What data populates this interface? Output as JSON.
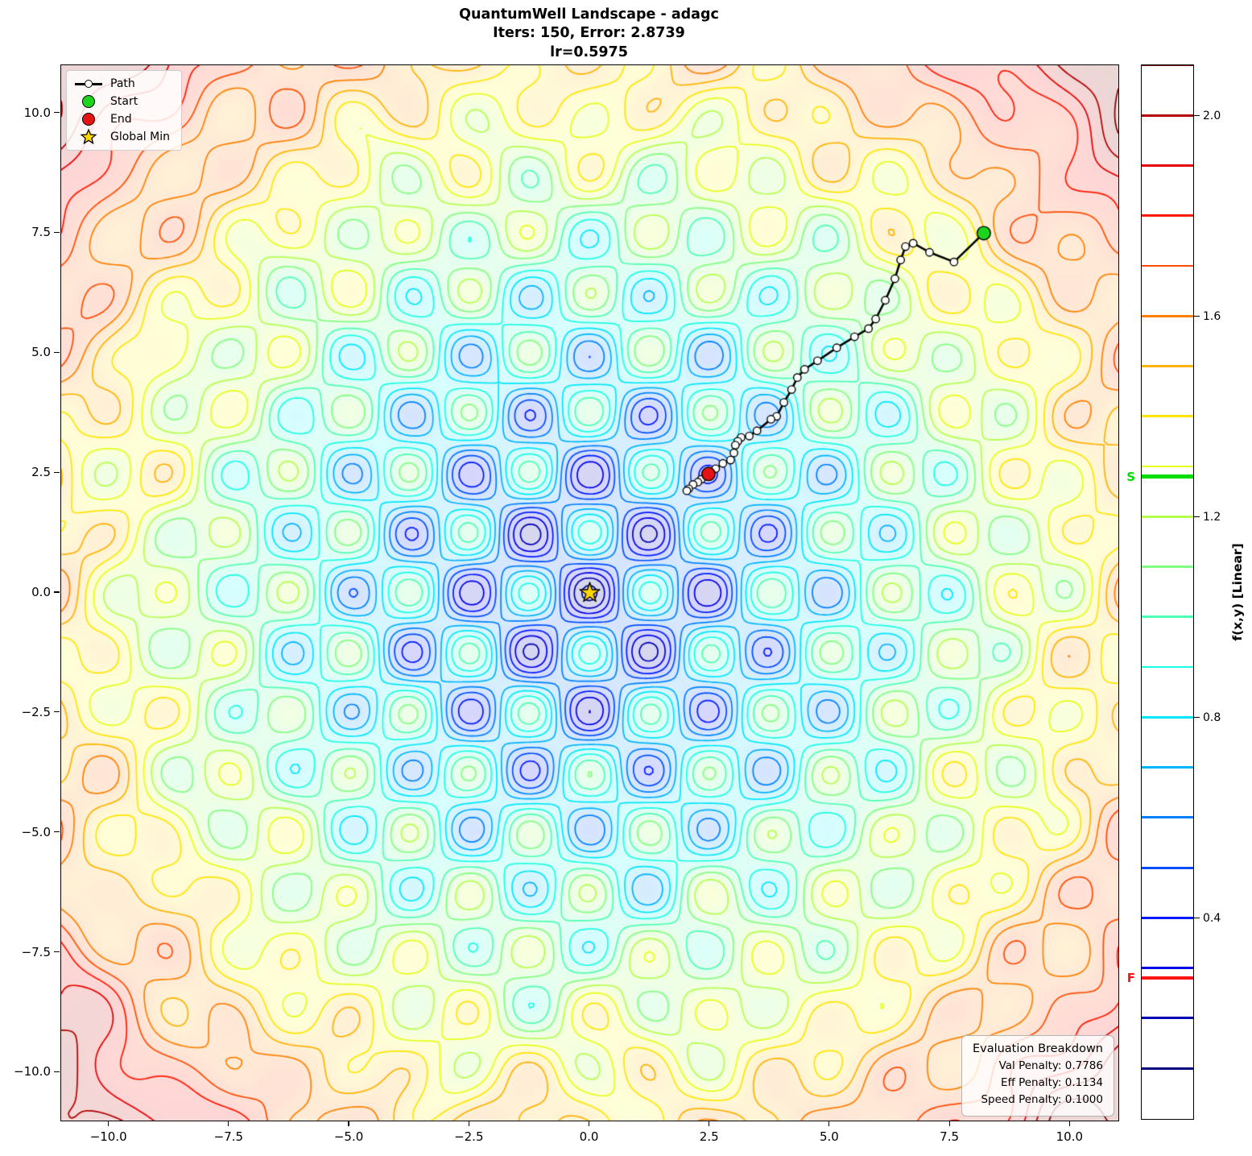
{
  "title": {
    "line1": "QuantumWell Landscape - adagc",
    "line2": "Iters: 150, Error: 2.8739",
    "line3": "lr=0.5975"
  },
  "legend": {
    "items": [
      {
        "label": "Path",
        "marker": "path-line-icon"
      },
      {
        "label": "Start",
        "marker": "start-circle-icon"
      },
      {
        "label": "End",
        "marker": "end-circle-icon"
      },
      {
        "label": "Global Min",
        "marker": "star-icon"
      }
    ]
  },
  "axes": {
    "x_range": [
      -11,
      11
    ],
    "y_range": [
      -11,
      11
    ],
    "x_ticks": [
      -10,
      -7.5,
      -5,
      -2.5,
      0,
      2.5,
      5,
      7.5,
      10
    ],
    "x_tick_labels": [
      "−10.0",
      "−7.5",
      "−5.0",
      "−2.5",
      "0.0",
      "2.5",
      "5.0",
      "7.5",
      "10.0"
    ],
    "y_ticks": [
      10,
      7.5,
      5,
      2.5,
      0,
      -2.5,
      -5,
      -7.5,
      -10
    ],
    "y_tick_labels": [
      "10.0",
      "7.5",
      "5.0",
      "2.5",
      "0.0",
      "−2.5",
      "−5.0",
      "−7.5",
      "−10.0"
    ]
  },
  "colorbar": {
    "label": "f(x,y) [Linear]",
    "range": [
      0,
      2.1
    ],
    "tick_values": [
      2.0,
      1.6,
      1.2,
      0.8,
      0.4
    ],
    "tick_labels": [
      "2.0",
      "1.6",
      "1.2",
      "0.8",
      "0.4"
    ],
    "s_label": "S",
    "s_value": 1.28,
    "f_label": "F",
    "f_value": 0.28
  },
  "evaluation_box": {
    "title": "Evaluation Breakdown",
    "lines": [
      "Val Penalty: 0.7786",
      "Eff Penalty: 0.1134",
      "Speed Penalty: 0.1000"
    ]
  },
  "colors": {
    "start": "#1bd41b",
    "end": "#e51313",
    "star": "#ffd700",
    "path": "#000000",
    "s_marker": "#00dd00",
    "f_marker": "#ff1212"
  },
  "chart_data": {
    "type": "contour",
    "title": "QuantumWell Landscape - adagc",
    "colormap": "jet",
    "levels": {
      "min": 0.1,
      "max": 2.1,
      "step": 0.1
    },
    "color_norm": [
      0.1,
      2.1
    ],
    "fill_alpha": 0.16,
    "surface": {
      "period": 2.5,
      "offset": 0.05,
      "radial_scale": 2.05,
      "radial_power": 1.35,
      "radial_rmax": 15.6,
      "well_amp": 0.43,
      "well_decay": 10,
      "noise_env": {
        "base": 0.15,
        "grow": 0.85,
        "r": 10
      },
      "noise_terms": [
        [
          0.05,
          1.7,
          0.6,
          1.4,
          -0.4,
          0
        ],
        [
          0.045,
          1.1,
          1.7,
          -1.3,
          0,
          1
        ],
        [
          0.035,
          2.2,
          -0.8,
          0.8,
          0,
          2
        ],
        [
          0.022,
          3.1,
          -0.9,
          2.7,
          0.4,
          0
        ]
      ]
    },
    "optimizer_path": {
      "points": [
        [
          8.2,
          7.5
        ],
        [
          7.58,
          6.9
        ],
        [
          7.07,
          7.1
        ],
        [
          6.73,
          7.29
        ],
        [
          6.57,
          7.22
        ],
        [
          6.47,
          6.94
        ],
        [
          6.35,
          6.55
        ],
        [
          6.15,
          6.1
        ],
        [
          5.95,
          5.71
        ],
        [
          5.8,
          5.51
        ],
        [
          5.51,
          5.34
        ],
        [
          5.14,
          5.11
        ],
        [
          4.74,
          4.84
        ],
        [
          4.47,
          4.66
        ],
        [
          4.32,
          4.49
        ],
        [
          4.2,
          4.24
        ],
        [
          4.04,
          3.97
        ],
        [
          3.89,
          3.68
        ],
        [
          3.77,
          3.62
        ],
        [
          3.48,
          3.38
        ],
        [
          3.32,
          3.27
        ],
        [
          3.15,
          3.24
        ],
        [
          3.08,
          3.16
        ],
        [
          3.03,
          3.08
        ],
        [
          3.0,
          2.92
        ],
        [
          2.93,
          2.77
        ],
        [
          2.77,
          2.7
        ],
        [
          2.62,
          2.59
        ],
        [
          2.5,
          2.5
        ],
        [
          2.41,
          2.44
        ],
        [
          2.32,
          2.37
        ],
        [
          2.25,
          2.31
        ],
        [
          2.15,
          2.26
        ],
        [
          2.06,
          2.17
        ],
        [
          2.02,
          2.13
        ],
        [
          2.47,
          2.48
        ]
      ],
      "start": [
        8.2,
        7.5
      ],
      "end": [
        2.47,
        2.48
      ]
    },
    "global_min": [
      0,
      0
    ]
  }
}
